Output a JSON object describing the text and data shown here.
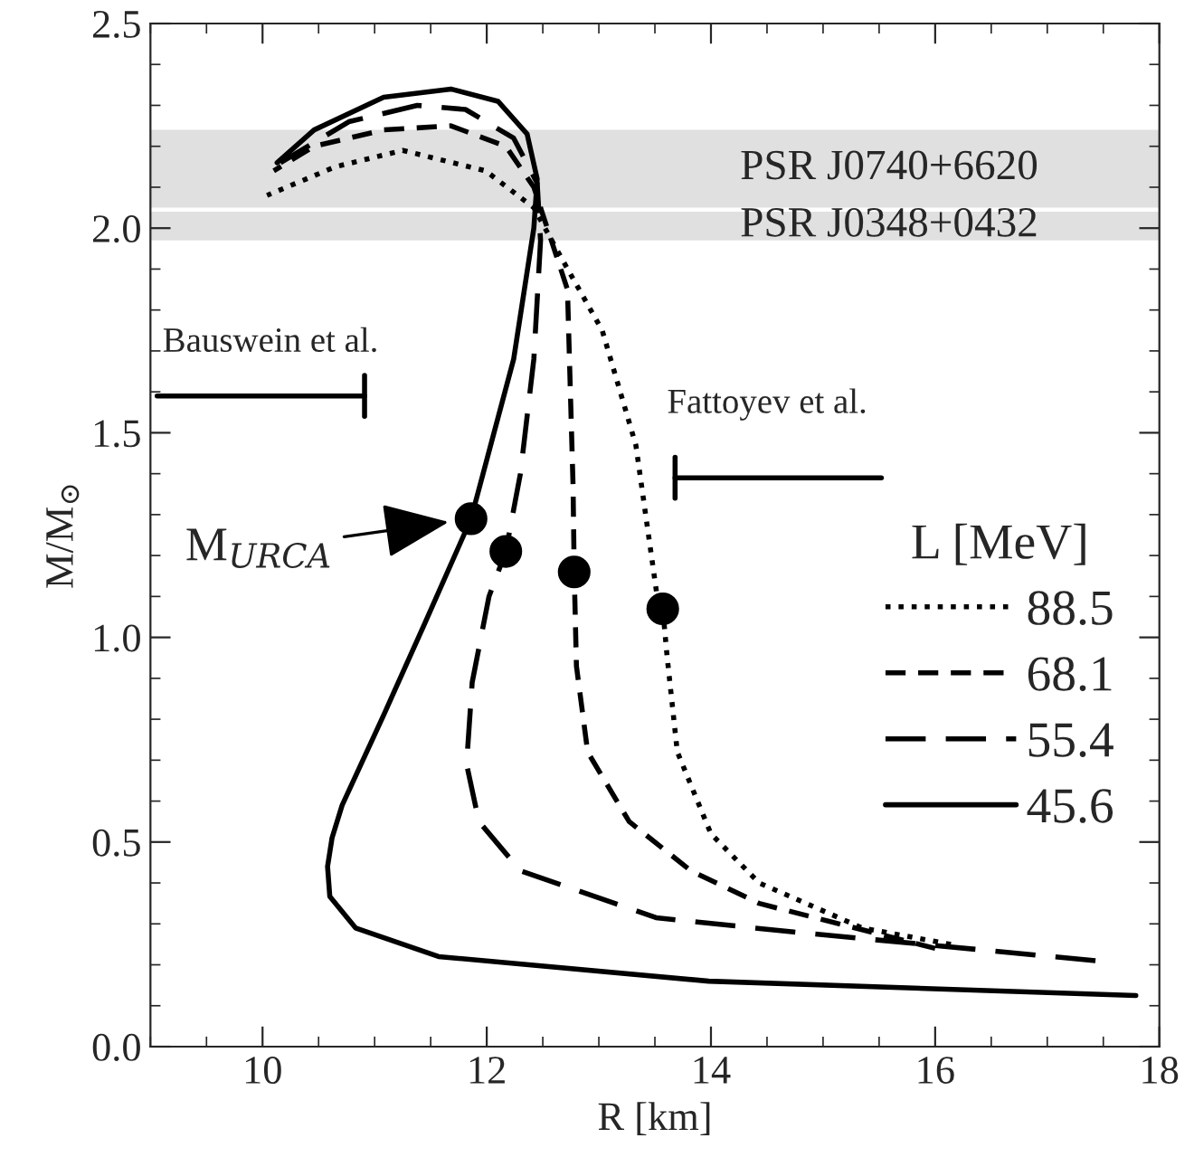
{
  "chart_data": {
    "type": "line",
    "xlabel": "R [km]",
    "ylabel": "M/M$_{⊙}$",
    "legend_title": "L [MeV]",
    "xlim": [
      9,
      18
    ],
    "ylim": [
      0,
      2.5
    ],
    "xticks": [
      10,
      12,
      14,
      16,
      18
    ],
    "yticks": [
      {
        "value": 0,
        "label": "0.0"
      },
      {
        "value": 0.5,
        "label": "0.5"
      },
      {
        "value": 1,
        "label": "1.0"
      },
      {
        "value": 1.5,
        "label": "1.5"
      },
      {
        "value": 2,
        "label": "2.0"
      },
      {
        "value": 2.5,
        "label": "2.5"
      }
    ],
    "grid": false,
    "legend": "right",
    "bands": [
      {
        "axis": "y",
        "from": 2.05,
        "to": 2.24,
        "label": "PSR J0740+6620",
        "color": "#e0e0e0"
      },
      {
        "axis": "y",
        "from": 1.97,
        "to": 2.04,
        "label": "PSR J0348+0432",
        "color": "#e0e0e0"
      }
    ],
    "series": [
      {
        "name": "88.5",
        "color": "#000000",
        "line_style": "dotted",
        "x": [
          16.14,
          15.35,
          14.43,
          14.0,
          13.7,
          13.61,
          13.57,
          13.52,
          13.33,
          13.03,
          12.66,
          12.42,
          11.99,
          11.25,
          10.65,
          10.04
        ],
        "values": [
          0.25,
          0.29,
          0.4,
          0.52,
          0.72,
          0.95,
          1.07,
          1.1,
          1.47,
          1.75,
          1.93,
          2.05,
          2.14,
          2.19,
          2.15,
          2.08
        ]
      },
      {
        "name": "68.1",
        "color": "#000000",
        "line_style": "dashed",
        "x": [
          16.0,
          14.43,
          13.82,
          13.27,
          12.9,
          12.8,
          12.78,
          12.77,
          12.72,
          12.54,
          12.42,
          12.17,
          11.68,
          11.08,
          10.46,
          10.1
        ],
        "values": [
          0.24,
          0.35,
          0.43,
          0.55,
          0.72,
          0.93,
          1.16,
          1.37,
          1.85,
          2.0,
          2.1,
          2.2,
          2.25,
          2.24,
          2.2,
          2.14
        ]
      },
      {
        "name": "55.4",
        "color": "#000000",
        "line_style": "longdashed",
        "x": [
          17.43,
          14.74,
          13.51,
          12.3,
          11.93,
          11.82,
          11.87,
          12.02,
          12.17,
          12.3,
          12.42,
          12.48,
          12.45,
          12.24,
          11.81,
          11.38,
          10.77,
          10.16
        ],
        "values": [
          0.21,
          0.28,
          0.315,
          0.43,
          0.55,
          0.69,
          0.89,
          1.1,
          1.21,
          1.4,
          1.68,
          1.97,
          2.11,
          2.22,
          2.29,
          2.3,
          2.26,
          2.16
        ]
      },
      {
        "name": "45.6",
        "color": "#000000",
        "line_style": "solid",
        "x": [
          17.79,
          13.98,
          11.57,
          10.83,
          10.6,
          10.58,
          10.62,
          10.71,
          11.08,
          11.44,
          11.86,
          12.24,
          12.42,
          12.45,
          12.36,
          12.1,
          11.68,
          11.08,
          10.46,
          10.13
        ],
        "values": [
          0.125,
          0.16,
          0.22,
          0.29,
          0.367,
          0.44,
          0.51,
          0.59,
          0.81,
          1.03,
          1.29,
          1.68,
          2.0,
          2.12,
          2.23,
          2.31,
          2.34,
          2.32,
          2.24,
          2.16
        ]
      },
      {
        "type": "scatter",
        "color": "#000000",
        "marker": "circle",
        "x": [
          11.86,
          12.17,
          12.78,
          13.57
        ],
        "values": [
          1.29,
          1.21,
          1.16,
          1.07
        ]
      },
      {
        "type": "line",
        "color": "#000000",
        "line_style": "solid",
        "x": [
          9.06,
          10.91
        ],
        "values": [
          1.59,
          1.59
        ]
      },
      {
        "type": "line",
        "color": "#000000",
        "line_style": "solid",
        "x": [
          10.91,
          10.91
        ],
        "values": [
          1.54,
          1.64
        ]
      },
      {
        "type": "line",
        "color": "#000000",
        "line_style": "solid",
        "x": [
          13.68,
          15.52
        ],
        "values": [
          1.39,
          1.39
        ]
      },
      {
        "type": "line",
        "color": "#000000",
        "line_style": "solid",
        "x": [
          13.68,
          13.68
        ],
        "values": [
          1.34,
          1.44
        ]
      }
    ],
    "annotations": [
      "Bauswein et al.",
      "Fattoyev et al.",
      {
        "text": "M$_{URCA}$",
        "x": 11.86,
        "y": 1.29
      }
    ]
  }
}
